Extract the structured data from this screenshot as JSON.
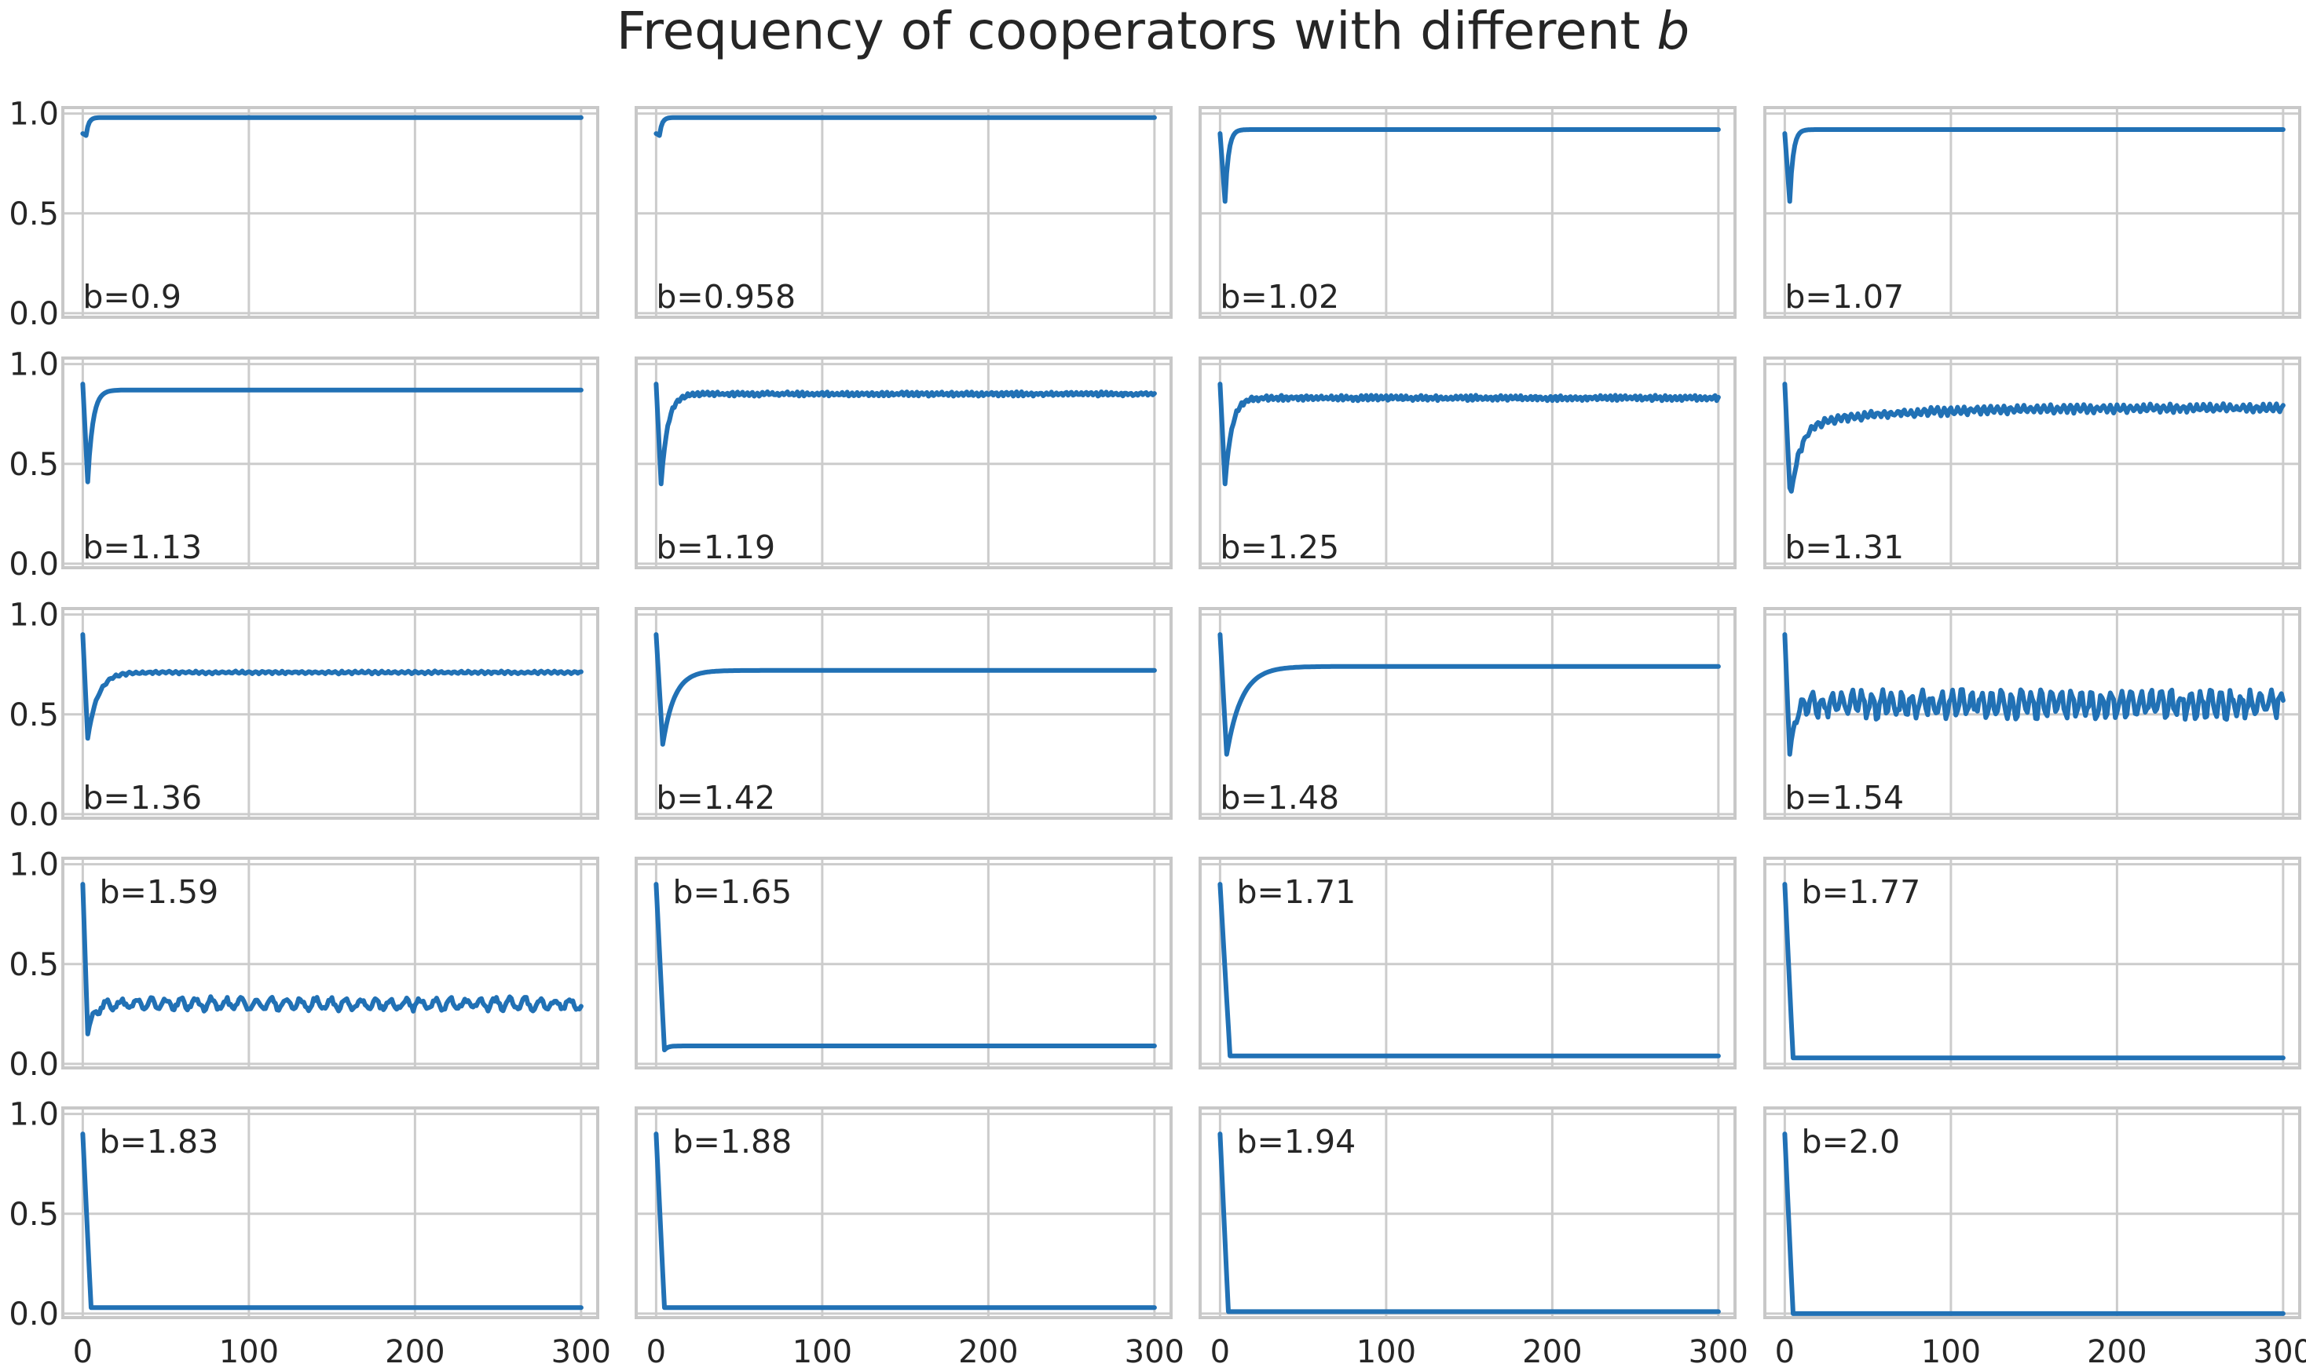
{
  "figure": {
    "title_prefix": "Frequency of cooperators with different ",
    "title_var": "b"
  },
  "colors": {
    "line": "#2171b5",
    "grid": "#cccccc",
    "frame": "#c8c8c8",
    "text": "#262626"
  },
  "chart_data": {
    "type": "line",
    "layout": "5x4 small multiples, shared x and y axes",
    "xlim": [
      -12,
      310
    ],
    "ylim": [
      -0.02,
      1.03
    ],
    "xticks": [
      0,
      100,
      200,
      300
    ],
    "xtick_labels": [
      "0",
      "100",
      "200",
      "300"
    ],
    "yticks": [
      0.0,
      0.5,
      1.0
    ],
    "ytick_labels": [
      "0.0",
      "0.5",
      "1.0"
    ],
    "grid": true,
    "x_range": [
      0,
      300
    ],
    "panels": [
      {
        "label": "b=0.9",
        "label_pos": "bottom-left",
        "start": 0.9,
        "min": 0.89,
        "min_t": 2,
        "steady": 0.98,
        "tau": 1.5,
        "osc_amp": 0,
        "osc_period": 0
      },
      {
        "label": "b=0.958",
        "label_pos": "bottom-left",
        "start": 0.9,
        "min": 0.89,
        "min_t": 2,
        "steady": 0.98,
        "tau": 1.5,
        "osc_amp": 0,
        "osc_period": 0
      },
      {
        "label": "b=1.02",
        "label_pos": "bottom-left",
        "start": 0.9,
        "min": 0.56,
        "min_t": 3,
        "steady": 0.92,
        "tau": 2,
        "osc_amp": 0,
        "osc_period": 0
      },
      {
        "label": "b=1.07",
        "label_pos": "bottom-left",
        "start": 0.9,
        "min": 0.56,
        "min_t": 3,
        "steady": 0.92,
        "tau": 2,
        "osc_amp": 0,
        "osc_period": 0
      },
      {
        "label": "b=1.13",
        "label_pos": "bottom-left",
        "start": 0.9,
        "min": 0.41,
        "min_t": 3,
        "steady": 0.87,
        "tau": 3,
        "osc_amp": 0,
        "osc_period": 0
      },
      {
        "label": "b=1.19",
        "label_pos": "bottom-left",
        "start": 0.9,
        "min": 0.4,
        "min_t": 3,
        "steady": 0.85,
        "tau": 4,
        "osc_amp": 0.008,
        "osc_period": 3
      },
      {
        "label": "b=1.25",
        "label_pos": "bottom-left",
        "start": 0.9,
        "min": 0.4,
        "min_t": 3,
        "steady": 0.83,
        "tau": 4,
        "osc_amp": 0.01,
        "osc_period": 3
      },
      {
        "label": "b=1.31",
        "label_pos": "bottom-left",
        "start": 0.9,
        "min": 0.38,
        "min_t": 3,
        "steady": 0.78,
        "tau": 6,
        "osc_amp": 0.015,
        "osc_period": 4,
        "slow_rise": 0.08
      },
      {
        "label": "b=1.36",
        "label_pos": "bottom-left",
        "start": 0.9,
        "min": 0.38,
        "min_t": 3,
        "steady": 0.71,
        "tau": 6,
        "osc_amp": 0.005,
        "osc_period": 4
      },
      {
        "label": "b=1.42",
        "label_pos": "bottom-left",
        "start": 0.9,
        "min": 0.35,
        "min_t": 4,
        "steady": 0.72,
        "tau": 7,
        "osc_amp": 0,
        "osc_period": 0
      },
      {
        "label": "b=1.48",
        "label_pos": "bottom-left",
        "start": 0.9,
        "min": 0.3,
        "min_t": 4,
        "steady": 0.74,
        "tau": 9,
        "osc_amp": 0,
        "osc_period": 0
      },
      {
        "label": "b=1.54",
        "label_pos": "bottom-left",
        "start": 0.9,
        "min": 0.3,
        "min_t": 3,
        "steady": 0.55,
        "tau": 3,
        "osc_amp": 0.055,
        "osc_period": 6
      },
      {
        "label": "b=1.59",
        "label_pos": "top-left",
        "start": 0.9,
        "min": 0.15,
        "min_t": 3,
        "steady": 0.3,
        "tau": 3,
        "osc_amp": 0.025,
        "osc_period": 9
      },
      {
        "label": "b=1.65",
        "label_pos": "top-left",
        "start": 0.9,
        "min": 0.07,
        "min_t": 5,
        "steady": 0.09,
        "tau": 2,
        "osc_amp": 0,
        "osc_period": 0
      },
      {
        "label": "b=1.71",
        "label_pos": "top-left",
        "start": 0.9,
        "min": 0.04,
        "min_t": 6,
        "steady": 0.04,
        "tau": 2,
        "osc_amp": 0,
        "osc_period": 0
      },
      {
        "label": "b=1.77",
        "label_pos": "top-left",
        "start": 0.9,
        "min": 0.03,
        "min_t": 5,
        "steady": 0.03,
        "tau": 2,
        "osc_amp": 0,
        "osc_period": 0
      },
      {
        "label": "b=1.83",
        "label_pos": "top-left",
        "start": 0.9,
        "min": 0.03,
        "min_t": 5,
        "steady": 0.03,
        "tau": 2,
        "osc_amp": 0,
        "osc_period": 0
      },
      {
        "label": "b=1.88",
        "label_pos": "top-left",
        "start": 0.9,
        "min": 0.03,
        "min_t": 5,
        "steady": 0.03,
        "tau": 2,
        "osc_amp": 0,
        "osc_period": 0
      },
      {
        "label": "b=1.94",
        "label_pos": "top-left",
        "start": 0.9,
        "min": 0.01,
        "min_t": 5,
        "steady": 0.01,
        "tau": 2,
        "osc_amp": 0,
        "osc_period": 0
      },
      {
        "label": "b=2.0",
        "label_pos": "top-left",
        "start": 0.9,
        "min": 0.0,
        "min_t": 5,
        "steady": 0.0,
        "tau": 2,
        "osc_amp": 0,
        "osc_period": 0
      }
    ]
  }
}
